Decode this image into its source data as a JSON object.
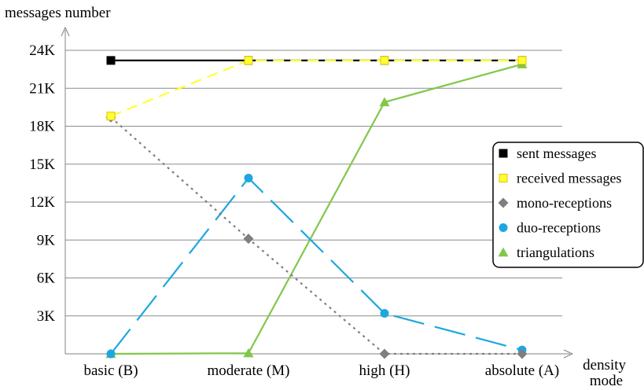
{
  "chart_data": {
    "type": "line",
    "ylabel": "messages number",
    "xlabel": "density mode",
    "categories": [
      "basic (B)",
      "moderate (M)",
      "high (H)",
      "absolute (A)"
    ],
    "yticks": [
      3000,
      6000,
      9000,
      12000,
      15000,
      18000,
      21000,
      24000
    ],
    "ytick_labels": [
      "3K",
      "6K",
      "9K",
      "12K",
      "15K",
      "18K",
      "21K",
      "24K"
    ],
    "ylim": [
      0,
      24000
    ],
    "grid": "horizontal",
    "legend_position": "right",
    "series": [
      {
        "name": "sent messages",
        "values": [
          23200,
          23200,
          23200,
          23200
        ],
        "color": "#000000",
        "marker": "square",
        "line": "solid"
      },
      {
        "name": "received messages",
        "values": [
          18800,
          23200,
          23200,
          23200
        ],
        "color": "#ffff33",
        "marker": "square",
        "line": "dashed"
      },
      {
        "name": "mono-receptions",
        "values": [
          18700,
          9100,
          0,
          0
        ],
        "color": "#7f7f7f",
        "marker": "diamond",
        "line": "dotted"
      },
      {
        "name": "duo-receptions",
        "values": [
          0,
          13900,
          3200,
          300
        ],
        "color": "#1ca7e0",
        "marker": "circle",
        "line": "dashdot"
      },
      {
        "name": "triangulations",
        "values": [
          0,
          50,
          19900,
          22900
        ],
        "color": "#82c74a",
        "marker": "triangle",
        "line": "solid"
      }
    ]
  }
}
